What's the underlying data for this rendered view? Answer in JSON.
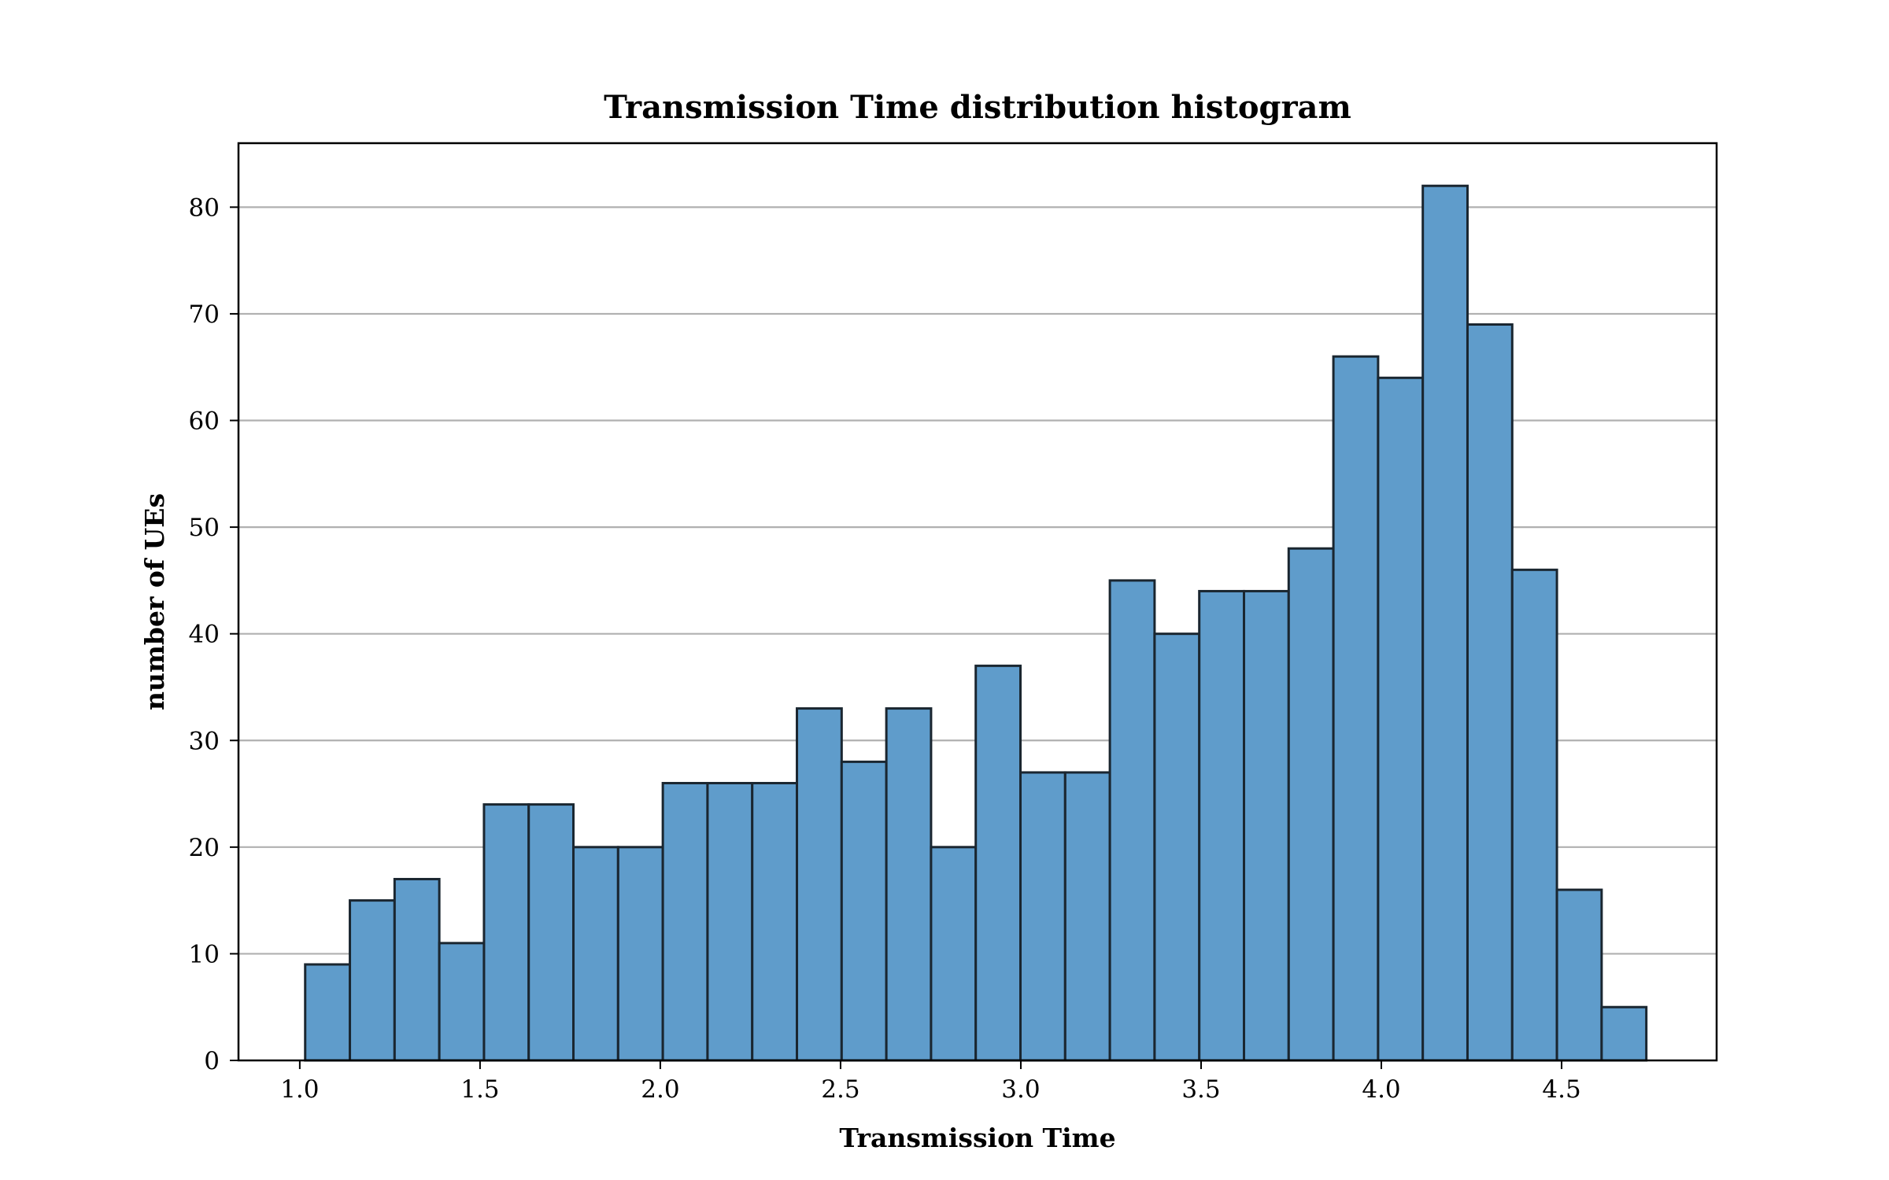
{
  "chart_data": {
    "type": "bar",
    "title": "Transmission Time distribution histogram",
    "xlabel": "Transmission Time",
    "ylabel": "number of UEs",
    "bin_start": 1.015,
    "bin_width": 0.124,
    "values": [
      9,
      15,
      17,
      11,
      24,
      24,
      20,
      20,
      26,
      26,
      26,
      33,
      28,
      33,
      20,
      37,
      27,
      27,
      45,
      40,
      44,
      44,
      48,
      66,
      64,
      82,
      69,
      46,
      16,
      5
    ],
    "xlim": [
      0.83,
      4.93
    ],
    "ylim": [
      0,
      86
    ],
    "x_ticks": [
      1.0,
      1.5,
      2.0,
      2.5,
      3.0,
      3.5,
      4.0,
      4.5
    ],
    "x_tick_labels": [
      "1.0",
      "1.5",
      "2.0",
      "2.5",
      "3.0",
      "3.5",
      "4.0",
      "4.5"
    ],
    "y_ticks": [
      0,
      10,
      20,
      30,
      40,
      50,
      60,
      70,
      80
    ],
    "y_tick_labels": [
      "0",
      "10",
      "20",
      "30",
      "40",
      "50",
      "60",
      "70",
      "80"
    ],
    "grid": "y",
    "bar_color": "#5f9ccb",
    "edge_color": "#1a2630",
    "grid_color": "#b0b0b0"
  }
}
